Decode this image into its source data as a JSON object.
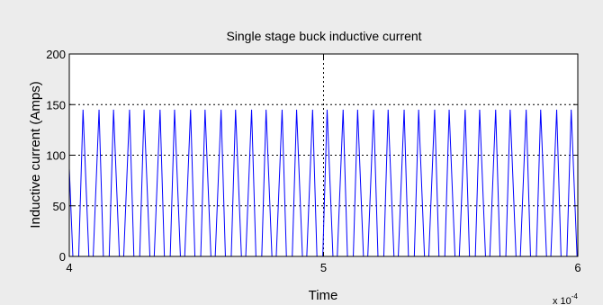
{
  "chart_data": {
    "type": "line",
    "title": "Single stage buck inductive current",
    "xlabel": "Time",
    "ylabel": "Inductive current (Amps)",
    "x_exponent_label": "x 10",
    "x_exponent_power": "-4",
    "xlim": [
      4,
      6
    ],
    "ylim": [
      0,
      200
    ],
    "x_ticks": [
      4,
      5,
      6
    ],
    "x_tick_labels": [
      "4",
      "5",
      "6"
    ],
    "y_ticks": [
      0,
      50,
      100,
      150,
      200
    ],
    "y_tick_labels": [
      "0",
      "50",
      "100",
      "150",
      "200"
    ],
    "grid": true,
    "series": [
      {
        "color": "#0000ff",
        "x": [
          4.0,
          4.014,
          4.037,
          4.054,
          4.077,
          4.094,
          4.117,
          4.134,
          4.157,
          4.174,
          4.197,
          4.214,
          4.237,
          4.254,
          4.277,
          4.294,
          4.317,
          4.334,
          4.357,
          4.374,
          4.397,
          4.414,
          4.437,
          4.454,
          4.477,
          4.494,
          4.517,
          4.534,
          4.557,
          4.574,
          4.597,
          4.614,
          4.637,
          4.654,
          4.677,
          4.694,
          4.717,
          4.734,
          4.757,
          4.774,
          4.797,
          4.814,
          4.837,
          4.854,
          4.877,
          4.894,
          4.917,
          4.934,
          4.957,
          4.974,
          4.997,
          5.014,
          5.037,
          5.054,
          5.077,
          5.094,
          5.117,
          5.134,
          5.157,
          5.174,
          5.197,
          5.214,
          5.237,
          5.254,
          5.277,
          5.294,
          5.317,
          5.334,
          5.357,
          5.374,
          5.397,
          5.414,
          5.437,
          5.454,
          5.477,
          5.494,
          5.517,
          5.534,
          5.557,
          5.574,
          5.597,
          5.614,
          5.637,
          5.654,
          5.677,
          5.694,
          5.717,
          5.734,
          5.757,
          5.774,
          5.797,
          5.814,
          5.837,
          5.854,
          5.877,
          5.894,
          5.917,
          5.934,
          5.957,
          5.974,
          5.997,
          6.0
        ],
        "y": [
          87,
          0,
          0,
          145,
          0,
          0,
          145,
          0,
          0,
          145,
          0,
          0,
          145,
          0,
          0,
          145,
          0,
          0,
          145,
          0,
          0,
          145,
          0,
          0,
          145,
          0,
          0,
          145,
          0,
          0,
          145,
          0,
          0,
          145,
          0,
          0,
          145,
          0,
          0,
          145,
          0,
          0,
          145,
          0,
          0,
          145,
          0,
          0,
          145,
          0,
          0,
          145,
          0,
          0,
          145,
          0,
          0,
          145,
          0,
          0,
          145,
          0,
          0,
          145,
          0,
          0,
          145,
          0,
          0,
          145,
          0,
          0,
          145,
          0,
          0,
          145,
          0,
          0,
          145,
          0,
          0,
          145,
          0,
          0,
          145,
          0,
          0,
          145,
          0,
          0,
          145,
          0,
          0,
          145,
          0,
          0,
          145,
          0,
          0,
          145,
          0,
          0
        ]
      }
    ]
  }
}
